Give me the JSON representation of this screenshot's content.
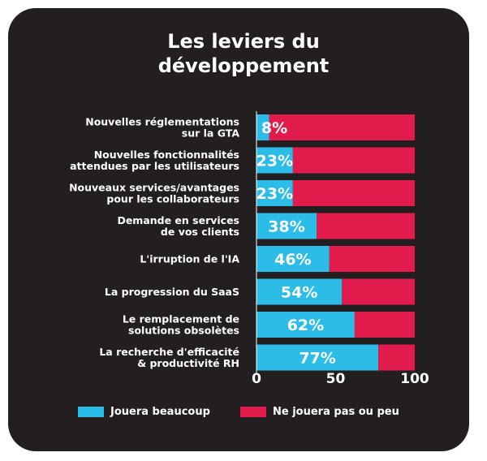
{
  "chart_data": {
    "type": "bar",
    "orientation": "horizontal",
    "stacked": true,
    "title": [
      "Les leviers du",
      "développement"
    ],
    "categories": [
      [
        "Nouvelles réglementations",
        "sur la GTA"
      ],
      [
        "Nouvelles fonctionnalités",
        "attendues par les utilisateurs"
      ],
      [
        "Nouveaux services/avantages",
        "pour les collaborateurs"
      ],
      [
        "Demande en services",
        "de vos clients"
      ],
      [
        "L'irruption de l'IA"
      ],
      [
        "La progression du SaaS"
      ],
      [
        "Le remplacement de",
        "solutions obsolètes"
      ],
      [
        "La recherche d'efficacité",
        "& productivité RH"
      ]
    ],
    "series": [
      {
        "name": "Jouera beaucoup",
        "color": "#2bbde8",
        "values": [
          8,
          23,
          23,
          38,
          46,
          54,
          62,
          77
        ]
      },
      {
        "name": "Ne jouera pas ou peu",
        "color": "#e21b4d",
        "values": [
          92,
          77,
          77,
          62,
          54,
          46,
          38,
          23
        ]
      }
    ],
    "data_labels": [
      "8%",
      "23%",
      "23%",
      "38%",
      "46%",
      "54%",
      "62%",
      "77%"
    ],
    "xlim": [
      0,
      100
    ],
    "xticks": [
      "0",
      "50",
      "100"
    ],
    "grid": false,
    "legend_position": "bottom"
  }
}
